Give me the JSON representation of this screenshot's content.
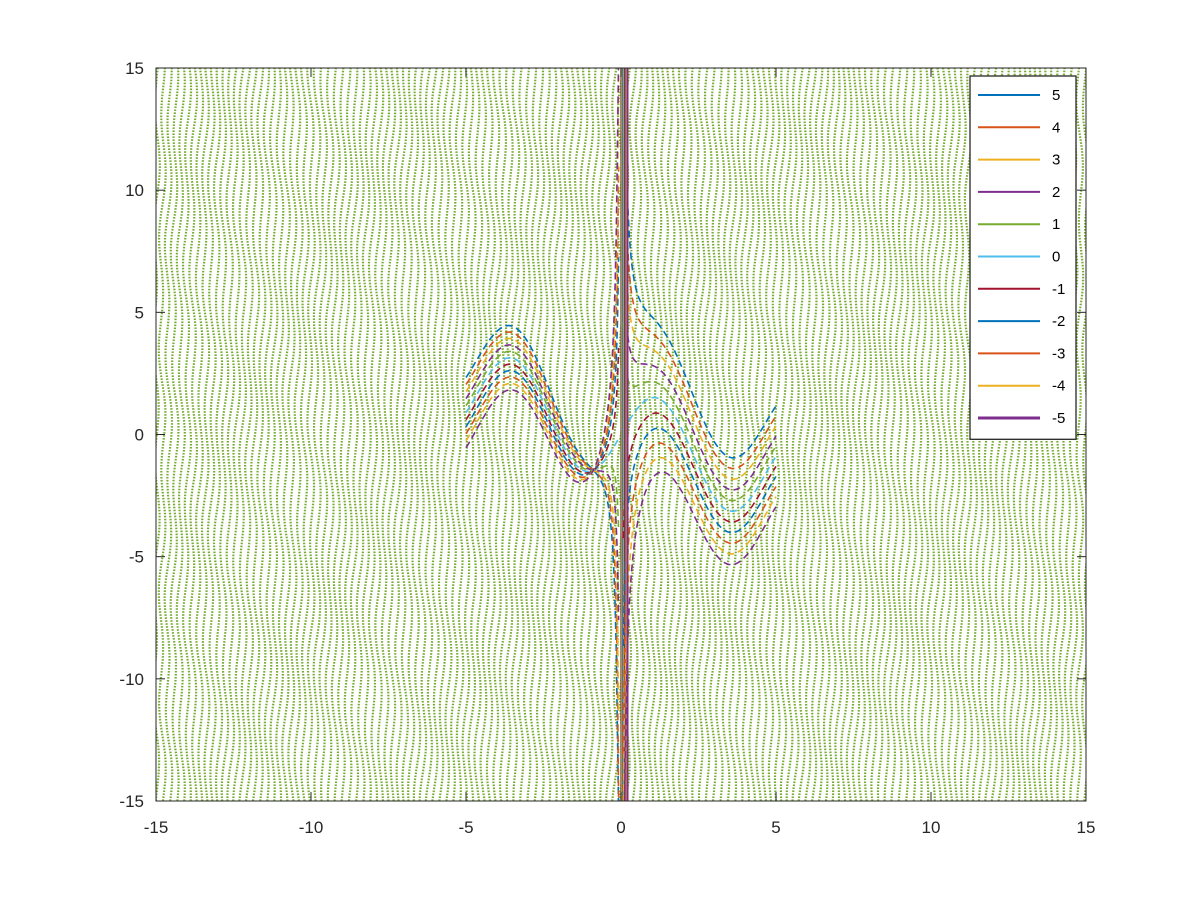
{
  "chart_data": {
    "type": "line",
    "title": "",
    "xlabel": "",
    "ylabel": "",
    "xlim": [
      -15,
      15
    ],
    "ylim": [
      -15,
      15
    ],
    "xticks": [
      -15,
      -10,
      -5,
      0,
      5,
      10,
      15
    ],
    "yticks": [
      -15,
      -10,
      -5,
      0,
      5,
      10,
      15
    ],
    "grid": false,
    "box": true,
    "legend_position": "top-right",
    "field": {
      "description_free": true,
      "color": "#77AC30",
      "x_range": [
        -15,
        15
      ],
      "y_range": [
        -15,
        15
      ],
      "x_step": 0.2
    },
    "series": [
      {
        "name": "5",
        "value": 5,
        "color": "#0072BD"
      },
      {
        "name": "4",
        "value": 4,
        "color": "#D95319"
      },
      {
        "name": "3",
        "value": 3,
        "color": "#EDB120"
      },
      {
        "name": "2",
        "value": 2,
        "color": "#7E2F8E"
      },
      {
        "name": "1",
        "value": 1,
        "color": "#77AC30"
      },
      {
        "name": "0",
        "value": 0,
        "color": "#4DBEEE"
      },
      {
        "name": "-1",
        "value": -1,
        "color": "#A2142F"
      },
      {
        "name": "-2",
        "value": -2,
        "color": "#0072BD"
      },
      {
        "name": "-3",
        "value": -3,
        "color": "#D95319"
      },
      {
        "name": "-4",
        "value": -4,
        "color": "#EDB120"
      },
      {
        "name": "-5",
        "value": -5,
        "color": "#7E2F8E"
      }
    ],
    "curve_x_range": [
      -5,
      5
    ]
  }
}
